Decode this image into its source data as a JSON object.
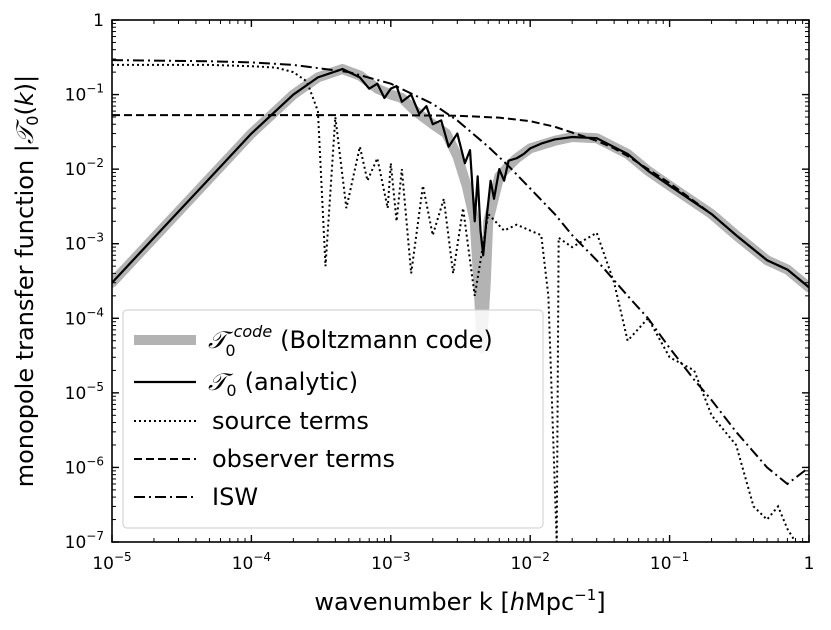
{
  "chart_data": {
    "type": "line",
    "title": "",
    "xlabel": "wavenumber k [hMpc⁻¹]",
    "xlabel_parts": {
      "pre": "wavenumber k [",
      "italic": "h",
      "mid": "Mpc",
      "sup": "−1",
      "post": "]"
    },
    "ylabel": "monopole transfer function |𝒯₀(k)|",
    "ylabel_parts": {
      "pre": "monopole transfer function |",
      "calT": "𝒯",
      "sub": "0",
      "open": "(",
      "italic": "k",
      "close": ")|"
    },
    "xscale": "log",
    "yscale": "log",
    "xlim": [
      1e-05,
      1
    ],
    "ylim": [
      1e-07,
      1
    ],
    "x_ticks": [
      {
        "value": 1e-05,
        "base": "10",
        "exp": "−5"
      },
      {
        "value": 0.0001,
        "base": "10",
        "exp": "−4"
      },
      {
        "value": 0.001,
        "base": "10",
        "exp": "−3"
      },
      {
        "value": 0.01,
        "base": "10",
        "exp": "−2"
      },
      {
        "value": 0.1,
        "base": "10",
        "exp": "−1"
      },
      {
        "value": 1,
        "base": "1",
        "exp": ""
      }
    ],
    "y_ticks": [
      {
        "value": 1e-07,
        "base": "10",
        "exp": "−7"
      },
      {
        "value": 1e-06,
        "base": "10",
        "exp": "−6"
      },
      {
        "value": 1e-05,
        "base": "10",
        "exp": "−5"
      },
      {
        "value": 0.0001,
        "base": "10",
        "exp": "−4"
      },
      {
        "value": 0.001,
        "base": "10",
        "exp": "−3"
      },
      {
        "value": 0.01,
        "base": "10",
        "exp": "−2"
      },
      {
        "value": 0.1,
        "base": "10",
        "exp": "−1"
      },
      {
        "value": 1,
        "base": "1",
        "exp": ""
      }
    ],
    "legend": {
      "placement": "lower-left",
      "entries": [
        {
          "key": "code",
          "calT": "𝒯",
          "sub": "0",
          "sup": "code",
          "text": "(Boltzmann code)",
          "style": "thick-gray"
        },
        {
          "key": "analytic",
          "calT": "𝒯",
          "sub": "0",
          "sup": "",
          "text": "(analytic)",
          "style": "solid"
        },
        {
          "key": "source",
          "calT": "",
          "sub": "",
          "sup": "",
          "text": "source terms",
          "style": "dotted"
        },
        {
          "key": "observer",
          "calT": "",
          "sub": "",
          "sup": "",
          "text": "observer terms",
          "style": "dashed"
        },
        {
          "key": "isw",
          "calT": "",
          "sub": "",
          "sup": "",
          "text": "ISW",
          "style": "dashdot"
        }
      ]
    },
    "series": [
      {
        "name": "T0 code (Boltzmann code)",
        "style": "thick-gray",
        "x": [
          1e-05,
          2e-05,
          5e-05,
          0.0001,
          0.0002,
          0.0003,
          0.00045,
          0.0006,
          0.0008,
          0.001,
          0.0012,
          0.0015,
          0.002,
          0.0025,
          0.003,
          0.0035,
          0.004,
          0.0043,
          0.0045,
          0.0048,
          0.005,
          0.006,
          0.007,
          0.008,
          0.01,
          0.015,
          0.02,
          0.03,
          0.05,
          0.07,
          0.1,
          0.2,
          0.3,
          0.5,
          0.7,
          1
        ],
        "y": [
          0.0003,
          0.0012,
          0.0075,
          0.03,
          0.1,
          0.17,
          0.22,
          0.18,
          0.12,
          0.1,
          0.09,
          0.06,
          0.04,
          0.03,
          0.015,
          0.006,
          0.002,
          0.0002,
          4e-05,
          0.0003,
          0.002,
          0.008,
          0.011,
          0.014,
          0.019,
          0.024,
          0.027,
          0.026,
          0.016,
          0.0095,
          0.006,
          0.0025,
          0.0013,
          0.0006,
          0.00045,
          0.00026
        ]
      },
      {
        "name": "T0 (analytic)",
        "style": "solid",
        "x": [
          1e-05,
          2e-05,
          5e-05,
          0.0001,
          0.0002,
          0.0003,
          0.00045,
          0.0006,
          0.0007,
          0.0008,
          0.0009,
          0.001,
          0.0011,
          0.0012,
          0.0014,
          0.0016,
          0.0018,
          0.002,
          0.0023,
          0.0026,
          0.003,
          0.0034,
          0.0037,
          0.004,
          0.0042,
          0.0044,
          0.0046,
          0.0049,
          0.0052,
          0.0055,
          0.006,
          0.0065,
          0.007,
          0.008,
          0.009,
          0.01,
          0.012,
          0.015,
          0.02,
          0.03,
          0.05,
          0.07,
          0.1,
          0.2,
          0.3,
          0.5,
          0.7,
          1
        ],
        "y": [
          0.0003,
          0.0012,
          0.0075,
          0.03,
          0.1,
          0.17,
          0.22,
          0.17,
          0.12,
          0.14,
          0.09,
          0.12,
          0.13,
          0.08,
          0.1,
          0.055,
          0.07,
          0.04,
          0.045,
          0.02,
          0.03,
          0.012,
          0.018,
          0.002,
          0.008,
          0.0015,
          0.0007,
          0.0025,
          0.007,
          0.004,
          0.01,
          0.007,
          0.013,
          0.014,
          0.016,
          0.019,
          0.022,
          0.025,
          0.027,
          0.026,
          0.016,
          0.0095,
          0.006,
          0.0025,
          0.0013,
          0.0006,
          0.00045,
          0.00026
        ]
      },
      {
        "name": "source terms",
        "style": "dotted",
        "x": [
          1e-05,
          5e-05,
          0.0001,
          0.00015,
          0.0002,
          0.00025,
          0.0003,
          0.00034,
          0.0004,
          0.00048,
          0.0006,
          0.00068,
          0.0008,
          0.00095,
          0.001,
          0.0011,
          0.0012,
          0.0014,
          0.0017,
          0.002,
          0.0024,
          0.0028,
          0.0033,
          0.004,
          0.005,
          0.0065,
          0.008,
          0.01,
          0.012,
          0.0135,
          0.0155,
          0.016,
          0.02,
          0.03,
          0.04,
          0.05,
          0.07,
          0.1,
          0.15,
          0.2,
          0.3,
          0.4,
          0.5,
          0.6,
          0.7,
          0.8,
          1
        ],
        "y": [
          0.25,
          0.25,
          0.24,
          0.23,
          0.2,
          0.15,
          0.06,
          0.0005,
          0.05,
          0.003,
          0.02,
          0.007,
          0.014,
          0.003,
          0.012,
          0.002,
          0.01,
          0.0004,
          0.006,
          0.0013,
          0.004,
          0.0004,
          0.003,
          0.0002,
          0.0025,
          0.0015,
          0.0018,
          0.0015,
          0.0013,
          0.0002,
          1e-07,
          0.0012,
          0.0009,
          0.0014,
          0.0003,
          5e-05,
          0.0001,
          3e-05,
          2e-05,
          5e-06,
          2e-06,
          3e-07,
          2e-07,
          3e-07,
          1.5e-07,
          1e-07,
          1e-07
        ]
      },
      {
        "name": "observer terms",
        "style": "dashed",
        "x": [
          1e-05,
          0.0001,
          0.001,
          0.003,
          0.006,
          0.01,
          0.015,
          0.02,
          0.03,
          0.04,
          0.05,
          0.07,
          0.1,
          0.2,
          0.3,
          0.5,
          0.7,
          1
        ],
        "y": [
          0.053,
          0.053,
          0.053,
          0.052,
          0.049,
          0.044,
          0.037,
          0.031,
          0.024,
          0.019,
          0.015,
          0.01,
          0.0065,
          0.0025,
          0.0013,
          0.0006,
          0.00045,
          0.00026
        ]
      },
      {
        "name": "ISW",
        "style": "dashdot",
        "x": [
          1e-05,
          5e-05,
          0.0001,
          0.0002,
          0.0005,
          0.001,
          0.002,
          0.003,
          0.005,
          0.007,
          0.01,
          0.015,
          0.02,
          0.03,
          0.05,
          0.07,
          0.1,
          0.15,
          0.2,
          0.3,
          0.5,
          0.7,
          1
        ],
        "y": [
          0.29,
          0.28,
          0.27,
          0.25,
          0.2,
          0.14,
          0.075,
          0.045,
          0.02,
          0.011,
          0.0055,
          0.0025,
          0.0013,
          0.0006,
          0.0002,
          0.0001,
          4e-05,
          1.5e-05,
          8e-06,
          3e-06,
          1e-06,
          6e-07,
          1e-06
        ]
      }
    ]
  }
}
